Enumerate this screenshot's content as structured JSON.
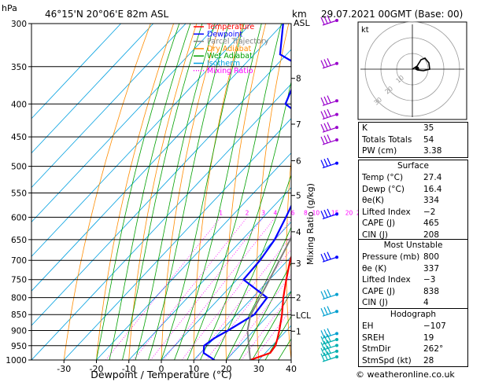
{
  "header": {
    "location": "46°15'N  20°06'E  82m  ASL",
    "datetime": "29.07.2021  00GMT  (Base: 00)",
    "p_unit": "hPa",
    "km_unit": "km",
    "asl_unit": "ASL"
  },
  "chart_data": {
    "type": "line",
    "title": "46°15'N  20°06'E  82m  ASL",
    "xlabel": "Dewpoint / Temperature (°C)",
    "ylabel": "hPa",
    "mixing_ratio_label": "Mixing Ratio (g/kg)",
    "xlim": [
      -40,
      40
    ],
    "xticks": [
      -30,
      -20,
      -10,
      0,
      10,
      20,
      30,
      40
    ],
    "pressure_levels": [
      300,
      350,
      400,
      450,
      500,
      550,
      600,
      650,
      700,
      750,
      800,
      850,
      900,
      950,
      1000
    ],
    "km_levels": [
      {
        "label": "8",
        "p": 365
      },
      {
        "label": "7",
        "p": 430
      },
      {
        "label": "6",
        "p": 490
      },
      {
        "label": "5",
        "p": 555
      },
      {
        "label": "4",
        "p": 632
      },
      {
        "label": "3",
        "p": 708
      },
      {
        "label": "2",
        "p": 800
      },
      {
        "label": "LCL",
        "p": 852
      },
      {
        "label": "1",
        "p": 902
      }
    ],
    "mixing_ratio_values": [
      "1",
      "2",
      "3",
      "4",
      "6",
      "8",
      "10",
      "15",
      "20",
      "25"
    ],
    "legend": [
      {
        "name": "Temperature",
        "color": "#ff0000"
      },
      {
        "name": "Dewpoint",
        "color": "#0000ff"
      },
      {
        "name": "Parcel Trajectory",
        "color": "#808080"
      },
      {
        "name": "Dry Adiabat",
        "color": "#ff8c00"
      },
      {
        "name": "Wet Adiabat",
        "color": "#00a000"
      },
      {
        "name": "Isotherm",
        "color": "#00a0e0"
      },
      {
        "name": "Mixing Ratio",
        "color": "#ff00ff"
      }
    ],
    "series": [
      {
        "name": "Temperature",
        "color": "#ff0000",
        "points": [
          {
            "p": 1000,
            "t": 27.4
          },
          {
            "p": 975,
            "t": 31.5
          },
          {
            "p": 950,
            "t": 31.0
          },
          {
            "p": 925,
            "t": 29.5
          },
          {
            "p": 900,
            "t": 27.8
          },
          {
            "p": 850,
            "t": 24.0
          },
          {
            "p": 800,
            "t": 19.5
          },
          {
            "p": 750,
            "t": 15.2
          },
          {
            "p": 700,
            "t": 10.8
          },
          {
            "p": 650,
            "t": 7.0
          },
          {
            "p": 600,
            "t": 3.0
          },
          {
            "p": 550,
            "t": -1.5
          },
          {
            "p": 500,
            "t": -6.5
          },
          {
            "p": 450,
            "t": -12.5
          },
          {
            "p": 400,
            "t": -19.0
          },
          {
            "p": 350,
            "t": -26.5
          },
          {
            "p": 300,
            "t": -35.0
          }
        ]
      },
      {
        "name": "Dewpoint",
        "color": "#0000ff",
        "points": [
          {
            "p": 1000,
            "t": 16.4
          },
          {
            "p": 975,
            "t": 11.0
          },
          {
            "p": 950,
            "t": 9.0
          },
          {
            "p": 925,
            "t": 10.0
          },
          {
            "p": 900,
            "t": 12.0
          },
          {
            "p": 850,
            "t": 15.5
          },
          {
            "p": 800,
            "t": 14.5
          },
          {
            "p": 750,
            "t": 2.0
          },
          {
            "p": 700,
            "t": 1.5
          },
          {
            "p": 650,
            "t": 0.0
          },
          {
            "p": 600,
            "t": -3.0
          },
          {
            "p": 550,
            "t": -6.5
          },
          {
            "p": 500,
            "t": -11.5
          },
          {
            "p": 450,
            "t": -15.0
          },
          {
            "p": 430,
            "t": -22.0
          },
          {
            "p": 400,
            "t": -36.0
          },
          {
            "p": 350,
            "t": -42.0
          },
          {
            "p": 335,
            "t": -52.0
          },
          {
            "p": 300,
            "t": -60.0
          }
        ]
      },
      {
        "name": "Parcel Trajectory",
        "color": "#808080",
        "points": [
          {
            "p": 1000,
            "t": 27.4
          },
          {
            "p": 950,
            "t": 22.8
          },
          {
            "p": 900,
            "t": 18.0
          },
          {
            "p": 852,
            "t": 14.5
          },
          {
            "p": 800,
            "t": 12.3
          },
          {
            "p": 750,
            "t": 10.0
          },
          {
            "p": 700,
            "t": 7.5
          },
          {
            "p": 650,
            "t": 4.8
          },
          {
            "p": 600,
            "t": 1.8
          },
          {
            "p": 550,
            "t": -1.8
          },
          {
            "p": 500,
            "t": -5.8
          },
          {
            "p": 450,
            "t": -10.8
          },
          {
            "p": 400,
            "t": -16.8
          },
          {
            "p": 350,
            "t": -24.0
          },
          {
            "p": 300,
            "t": -33.0
          }
        ]
      }
    ]
  },
  "indices": [
    {
      "label": "K",
      "value": "35"
    },
    {
      "label": "Totals Totals",
      "value": "54"
    },
    {
      "label": "PW (cm)",
      "value": "3.38"
    }
  ],
  "surface": {
    "title": "Surface",
    "rows": [
      {
        "label": "Temp (°C)",
        "value": "27.4"
      },
      {
        "label": "Dewp (°C)",
        "value": "16.4"
      },
      {
        "label": "θe(K)",
        "value": "334"
      },
      {
        "label": "Lifted Index",
        "value": "−2"
      },
      {
        "label": "CAPE (J)",
        "value": "465"
      },
      {
        "label": "CIN (J)",
        "value": "208"
      }
    ]
  },
  "most_unstable": {
    "title": "Most Unstable",
    "rows": [
      {
        "label": "Pressure (mb)",
        "value": "800"
      },
      {
        "label": "θe (K)",
        "value": "337"
      },
      {
        "label": "Lifted Index",
        "value": "−3"
      },
      {
        "label": "CAPE (J)",
        "value": "838"
      },
      {
        "label": "CIN (J)",
        "value": "4"
      }
    ]
  },
  "hodograph": {
    "title": "Hodograph",
    "unit": "kt",
    "ring_labels": [
      "10",
      "20",
      "30"
    ],
    "rows": [
      {
        "label": "EH",
        "value": "−107"
      },
      {
        "label": "SREH",
        "value": "19"
      },
      {
        "label": "StmDir",
        "value": "262°"
      },
      {
        "label": "StmSpd (kt)",
        "value": "28"
      }
    ]
  },
  "credit": "© weatheronline.co.uk"
}
